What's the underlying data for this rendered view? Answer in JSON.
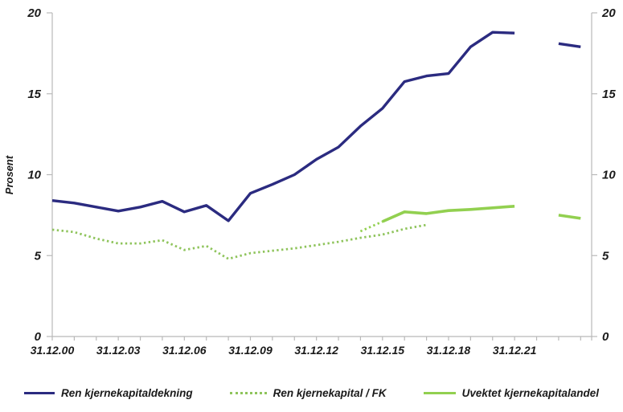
{
  "chart_data": {
    "type": "line",
    "title": "",
    "ylabel": "Prosent",
    "ylim": [
      0,
      20
    ],
    "yticks": [
      "0",
      "5",
      "10",
      "15",
      "20"
    ],
    "ytick_values": [
      0,
      5,
      10,
      15,
      20
    ],
    "y_axis_sides": [
      "left",
      "right"
    ],
    "grid": false,
    "legend_position": "bottom",
    "x_minor_tick_years": [
      2000,
      2001,
      2002,
      2003,
      2004,
      2005,
      2006,
      2007,
      2008,
      2009,
      2010,
      2011,
      2012,
      2013,
      2014,
      2015,
      2016,
      2017,
      2018,
      2019,
      2020,
      2021,
      2022,
      2023,
      2024
    ],
    "x_label_years": [
      2000,
      2003,
      2006,
      2009,
      2012,
      2015,
      2018,
      2021
    ],
    "x_tick_labels": [
      "31.12.00",
      "31.12.03",
      "31.12.06",
      "31.12.09",
      "31.12.12",
      "31.12.15",
      "31.12.18",
      "31.12.21"
    ],
    "colors": {
      "axis": "#b9b9b9",
      "text": "#1a1a1a",
      "navy": "#2b2b80",
      "dotted_green": "#8fc45c",
      "light_green": "#92d050"
    },
    "series": [
      {
        "name": "Ren kjernekapitaldekning",
        "color": "#2b2b80",
        "width": 3.4,
        "segments": [
          {
            "style": "solid",
            "points": [
              [
                2000,
                8.4
              ],
              [
                2001,
                8.25
              ],
              [
                2002,
                8.0
              ],
              [
                2003,
                7.75
              ],
              [
                2004,
                8.0
              ],
              [
                2005,
                8.35
              ],
              [
                2006,
                7.7
              ],
              [
                2007,
                8.1
              ],
              [
                2008,
                7.15
              ],
              [
                2009,
                8.85
              ],
              [
                2010,
                9.4
              ],
              [
                2011,
                10.0
              ],
              [
                2012,
                10.95
              ],
              [
                2013,
                11.7
              ],
              [
                2014,
                13.0
              ],
              [
                2015,
                14.1
              ],
              [
                2016,
                15.75
              ],
              [
                2017,
                16.1
              ],
              [
                2018,
                16.25
              ],
              [
                2019,
                17.9
              ],
              [
                2020,
                18.8
              ],
              [
                2021,
                18.75
              ]
            ]
          },
          {
            "style": "solid",
            "points": [
              [
                2023,
                18.1
              ],
              [
                2024,
                17.9
              ]
            ]
          }
        ]
      },
      {
        "name": "Ren kjernekapital / FK",
        "color": "#8fc45c",
        "width": 2.8,
        "segments": [
          {
            "style": "dotted",
            "points": [
              [
                2000,
                6.6
              ],
              [
                2001,
                6.45
              ],
              [
                2002,
                6.05
              ],
              [
                2003,
                5.75
              ],
              [
                2004,
                5.75
              ],
              [
                2005,
                5.95
              ],
              [
                2006,
                5.35
              ],
              [
                2007,
                5.6
              ],
              [
                2008,
                4.8
              ],
              [
                2009,
                5.15
              ],
              [
                2010,
                5.3
              ],
              [
                2011,
                5.45
              ],
              [
                2012,
                5.65
              ],
              [
                2013,
                5.85
              ],
              [
                2014,
                6.1
              ],
              [
                2015,
                6.3
              ],
              [
                2016,
                6.65
              ],
              [
                2017,
                6.9
              ]
            ]
          }
        ]
      },
      {
        "name": "Uvektet kjernekapitalandel",
        "color": "#92d050",
        "width": 3.6,
        "segments": [
          {
            "style": "dotted",
            "points": [
              [
                2014,
                6.5
              ],
              [
                2015,
                7.1
              ]
            ]
          },
          {
            "style": "solid",
            "points": [
              [
                2015,
                7.1
              ],
              [
                2016,
                7.7
              ],
              [
                2017,
                7.6
              ],
              [
                2018,
                7.78
              ],
              [
                2019,
                7.85
              ],
              [
                2020,
                7.95
              ],
              [
                2021,
                8.05
              ]
            ]
          },
          {
            "style": "solid",
            "points": [
              [
                2023,
                7.5
              ],
              [
                2024,
                7.3
              ]
            ]
          }
        ]
      }
    ]
  }
}
